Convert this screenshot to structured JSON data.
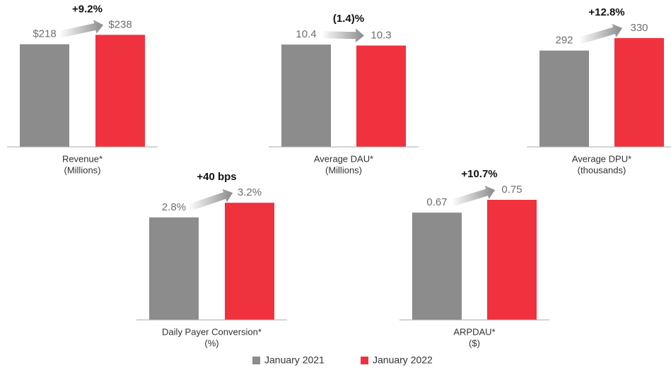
{
  "legend": {
    "names": [
      "January 2021",
      "January 2022"
    ],
    "colors": [
      "#8c8c8d",
      "#f0323f"
    ]
  },
  "chart_data": [
    {
      "type": "bar",
      "values": [
        218,
        238
      ],
      "value_labels": [
        "$218",
        "$238"
      ],
      "annotation": "+9.2%",
      "xlabel": [
        "Revenue*",
        "(Millions)"
      ],
      "ylim": [
        0,
        255
      ]
    },
    {
      "type": "bar",
      "values": [
        10.4,
        10.3
      ],
      "value_labels": [
        "10.4",
        "10.3"
      ],
      "annotation": "(1.4)%",
      "xlabel": [
        "Average DAU*",
        "(Millions)"
      ],
      "ylim": [
        0,
        12.2
      ]
    },
    {
      "type": "bar",
      "values": [
        292,
        330
      ],
      "value_labels": [
        "292",
        "330"
      ],
      "annotation": "+12.8%",
      "xlabel": [
        "Average DPU*",
        "(thousands)"
      ],
      "ylim": [
        0,
        364
      ]
    },
    {
      "type": "bar",
      "values": [
        2.8,
        3.2
      ],
      "value_labels": [
        "2.8%",
        "3.2%"
      ],
      "annotation": "+40 bps",
      "xlabel": [
        "Daily Payer Conversion*",
        "(%)"
      ],
      "ylim": [
        0,
        3.28
      ]
    },
    {
      "type": "bar",
      "values": [
        0.67,
        0.75
      ],
      "value_labels": [
        "0.67",
        "0.75"
      ],
      "annotation": "+10.7%",
      "xlabel": [
        "ARPDAU*",
        "($)"
      ],
      "ylim": [
        0,
        0.75
      ]
    }
  ]
}
